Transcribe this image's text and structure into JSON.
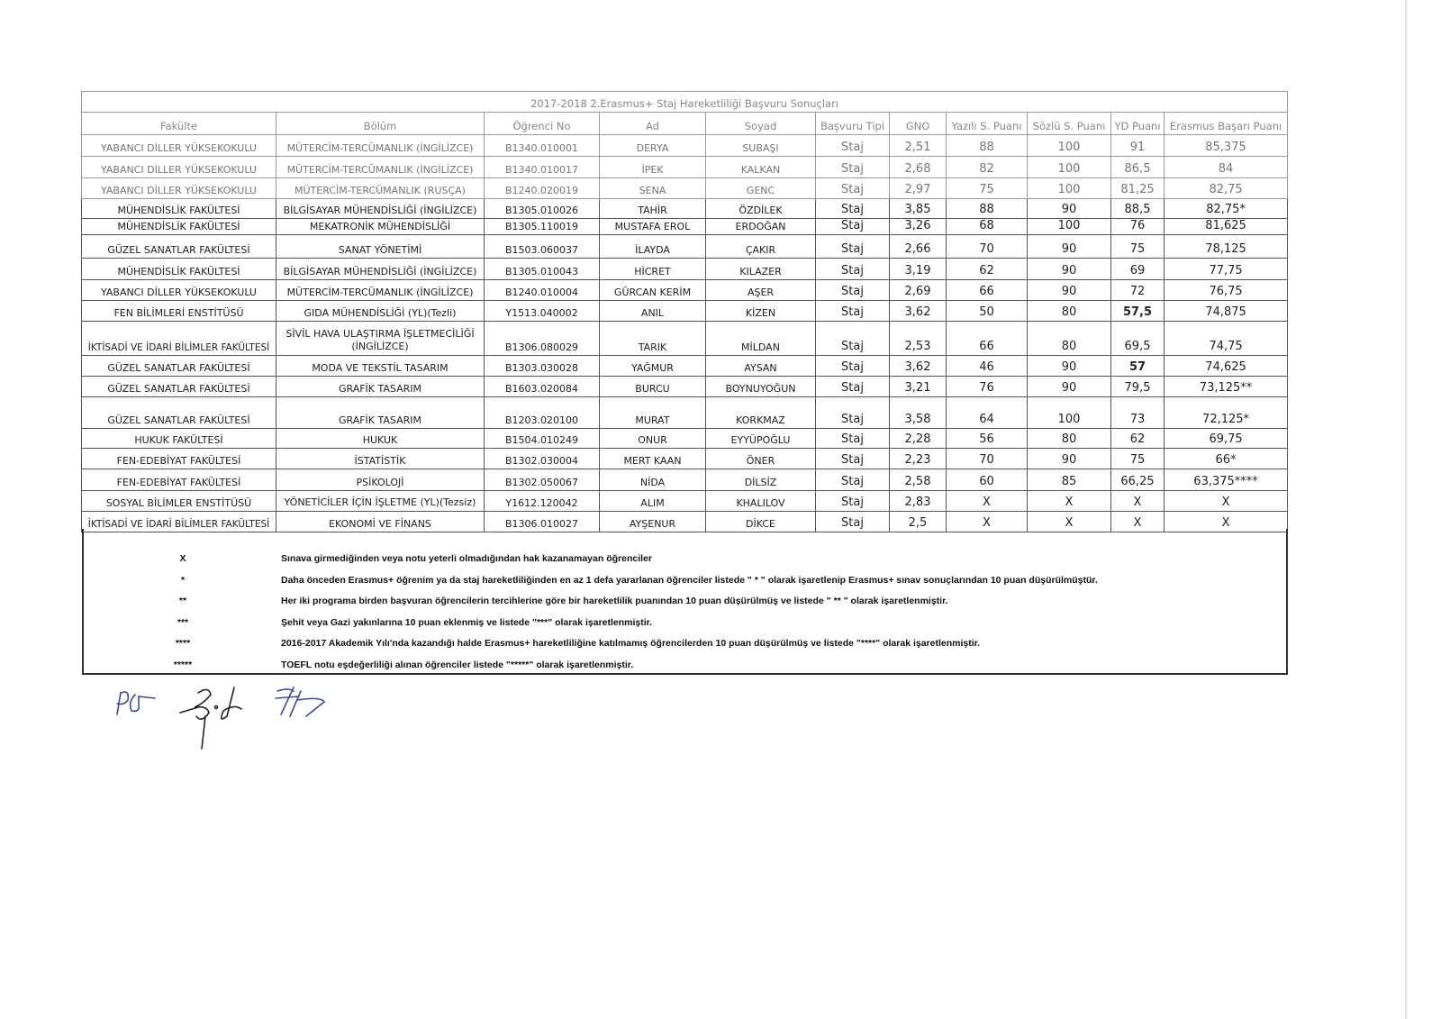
{
  "document": {
    "title": "2017-2018  2.Erasmus+ Staj Hareketliliği Başvuru Sonuçları",
    "columns": [
      "Fakülte",
      "Bölüm",
      "Öğrenci No",
      "Ad",
      "Soyad",
      "Başvuru Tipi",
      "GNO",
      "Yazılı S. Puanı",
      "Sözlü S. Puanı",
      "YD Puanı",
      "Erasmus Başarı Puanı"
    ],
    "rows": [
      [
        "YABANCI DİLLER YÜKSEKOKULU",
        "MÜTERCİM-TERCÜMANLIK (İNGİLİZCE)",
        "B1340.010001",
        "DERYA",
        "SUBAŞI",
        "Staj",
        "2,51",
        "88",
        "100",
        "91",
        "85,375"
      ],
      [
        "YABANCI DİLLER YÜKSEKOKULU",
        "MÜTERCİM-TERCÜMANLIK (İNGİLİZCE)",
        "B1340.010017",
        "İPEK",
        "KALKAN",
        "Staj",
        "2,68",
        "82",
        "100",
        "86,5",
        "84"
      ],
      [
        "YABANCI DİLLER YÜKSEKOKULU",
        "MÜTERCİM-TERCÜMANLIK (RUSÇA)",
        "B1240.020019",
        "SENA",
        "GENC",
        "Staj",
        "2,97",
        "75",
        "100",
        "81,25",
        "82,75"
      ],
      [
        "MÜHENDİSLİK FAKÜLTESİ",
        "BİLGİSAYAR MÜHENDİSLİĞİ (İNGİLİZCE)",
        "B1305.010026",
        "TAHİR",
        "ÖZDİLEK",
        "Staj",
        "3,85",
        "88",
        "90",
        "88,5",
        "82,75*"
      ],
      [
        "MÜHENDİSLİK FAKÜLTESİ",
        "MEKATRONİK MÜHENDİSLİĞİ",
        "B1305.110019",
        "MUSTAFA EROL",
        "ERDOĞAN",
        "Staj",
        "3,26",
        "68",
        "100",
        "76",
        "81,625"
      ],
      [
        "GÜZEL SANATLAR FAKÜLTESİ",
        "SANAT YÖNETİMİ",
        "B1503.060037",
        "İLAYDA",
        "ÇAKIR",
        "Staj",
        "2,66",
        "70",
        "90",
        "75",
        "78,125"
      ],
      [
        "MÜHENDİSLİK FAKÜLTESİ",
        "BİLGİSAYAR MÜHENDİSLİĞİ (İNGİLİZCE)",
        "B1305.010043",
        "HİCRET",
        "KILAZER",
        "Staj",
        "3,19",
        "62",
        "90",
        "69",
        "77,75"
      ],
      [
        "YABANCI DİLLER YÜKSEKOKULU",
        "MÜTERCİM-TERCÜMANLIK (İNGİLİZCE)",
        "B1240.010004",
        "GÜRCAN KERİM",
        "AŞER",
        "Staj",
        "2,69",
        "66",
        "90",
        "72",
        "76,75"
      ],
      [
        "FEN BİLİMLERİ ENSTİTÜSÜ",
        "GIDA MÜHENDİSLİĞİ (YL)(Tezli)",
        "Y1513.040002",
        "ANIL",
        "KİZEN",
        "Staj",
        "3,62",
        "50",
        "80",
        "57,5",
        "74,875"
      ],
      [
        "İKTİSADİ VE İDARİ BİLİMLER FAKÜLTESİ",
        "SİVİL HAVA ULAŞTIRMA İŞLETMECİLİĞİ (İNGİLİZCE)",
        "B1306.080029",
        "TARIK",
        "MİLDAN",
        "Staj",
        "2,53",
        "66",
        "80",
        "69,5",
        "74,75"
      ],
      [
        "GÜZEL SANATLAR FAKÜLTESİ",
        "MODA VE TEKSTİL TASARIM",
        "B1303.030028",
        "YAĞMUR",
        "AYSAN",
        "Staj",
        "3,62",
        "46",
        "90",
        "57",
        "74,625"
      ],
      [
        "GÜZEL SANATLAR FAKÜLTESİ",
        "GRAFİK TASARIM",
        "B1603.020084",
        "BURCU",
        "BOYNUYOĞUN",
        "Staj",
        "3,21",
        "76",
        "90",
        "79,5",
        "73,125**"
      ],
      [
        "GÜZEL SANATLAR FAKÜLTESİ",
        "GRAFİK TASARIM",
        "B1203.020100",
        "MURAT",
        "KORKMAZ",
        "Staj",
        "3,58",
        "64",
        "100",
        "73",
        "72,125*"
      ],
      [
        "HUKUK FAKÜLTESİ",
        "HUKUK",
        "B1504.010249",
        "ONUR",
        "EYYÜPOĞLU",
        "Staj",
        "2,28",
        "56",
        "80",
        "62",
        "69,75"
      ],
      [
        "FEN-EDEBİYAT FAKÜLTESİ",
        "İSTATİSTİK",
        "B1302.030004",
        "MERT KAAN",
        "ÖNER",
        "Staj",
        "2,23",
        "70",
        "90",
        "75",
        "66*"
      ],
      [
        "FEN-EDEBİYAT FAKÜLTESİ",
        "PSİKOLOJİ",
        "B1302.050067",
        "NİDA",
        "DİLSİZ",
        "Staj",
        "2,58",
        "60",
        "85",
        "66,25",
        "63,375****"
      ],
      [
        "SOSYAL BİLİMLER ENSTİTÜSÜ",
        "YÖNETİCİLER İÇİN İŞLETME (YL)(Tezsiz)",
        "Y1612.120042",
        "ALIM",
        "KHALILOV",
        "Staj",
        "2,83",
        "X",
        "X",
        "X",
        "X"
      ],
      [
        "İKTİSADİ VE İDARİ BİLİMLER FAKÜLTESİ",
        "EKONOMİ VE FİNANS",
        "B1306.010027",
        "AYŞENUR",
        "DİKCE",
        "Staj",
        "2,5",
        "X",
        "X",
        "X",
        "X"
      ]
    ],
    "legend": [
      {
        "symbol": "X",
        "text": "Sınava girmediğinden veya notu yeterli olmadığından hak kazanamayan öğrenciler"
      },
      {
        "symbol": "*",
        "text": "Daha önceden Erasmus+ öğrenim ya da staj hareketliliğinden en az 1 defa yararlanan öğrenciler listede \" * \" olarak işaretlenip Erasmus+ sınav sonuçlarından 10 puan düşürülmüştür."
      },
      {
        "symbol": "**",
        "text": "Her iki programa birden başvuran öğrencilerin tercihlerine göre bir hareketlilik puanından 10 puan düşürülmüş ve listede \" ** \" olarak işaretlenmiştir."
      },
      {
        "symbol": "***",
        "text": "Şehit veya Gazi yakınlarına 10 puan eklenmiş ve listede \"***\" olarak işaretlenmiştir."
      },
      {
        "symbol": "****",
        "text": "2016-2017 Akademik Yılı'nda kazandığı halde Erasmus+ hareketliliğine katılmamış öğrencilerden 10 puan düşürülmüş ve listede \"****\" olarak işaretlenmiştir."
      },
      {
        "symbol": "*****",
        "text": "TOEFL notu eşdeğerliliği alınan öğrenciler listede \"*****\" olarak işaretlenmiştir."
      }
    ],
    "signatures": [
      "handwritten-signature"
    ]
  }
}
